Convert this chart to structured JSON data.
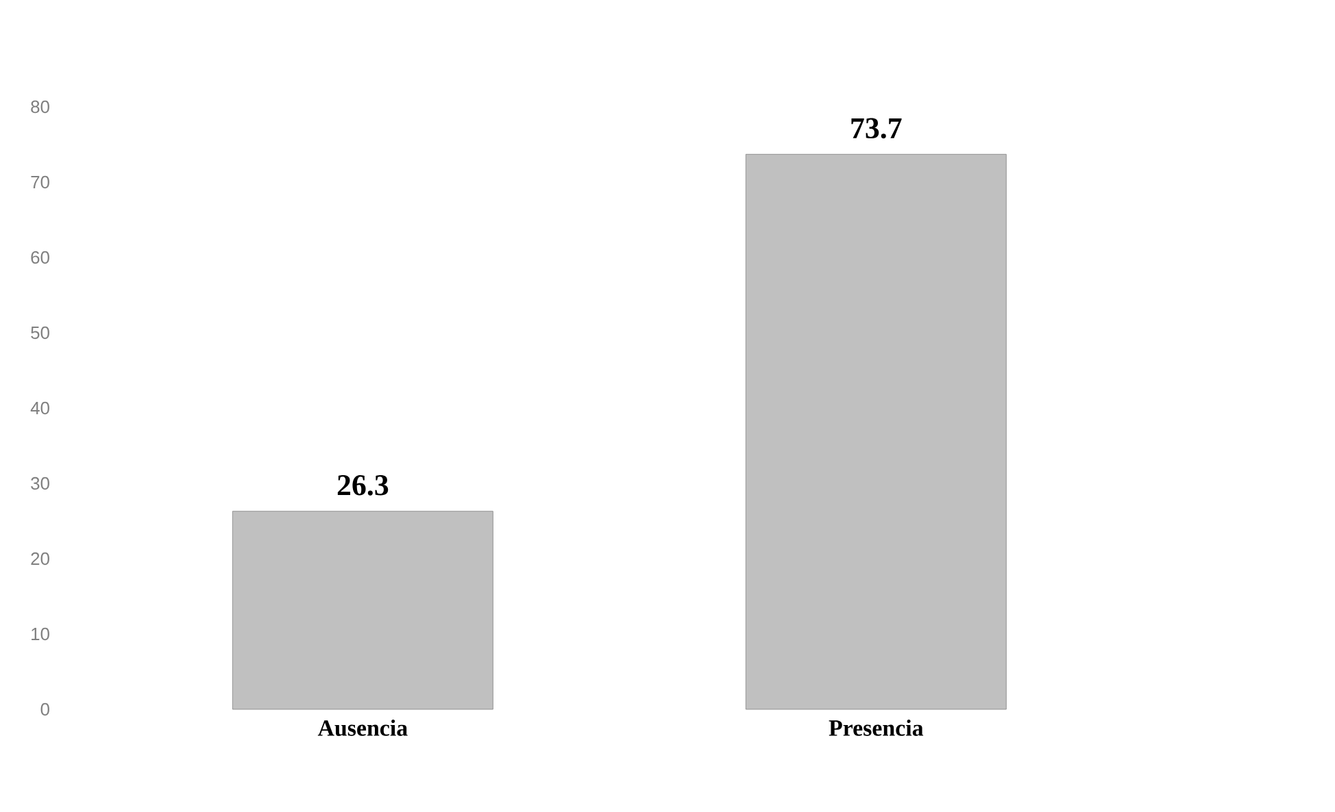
{
  "chart_data": {
    "type": "bar",
    "categories": [
      "Ausencia",
      "Presencia"
    ],
    "values": [
      26.3,
      73.7
    ],
    "color": "#c0c0c0",
    "ylim": [
      0,
      80
    ],
    "yticks": [
      0,
      10,
      20,
      30,
      40,
      50,
      60,
      70,
      80
    ],
    "data_labels": true,
    "grid": false
  }
}
